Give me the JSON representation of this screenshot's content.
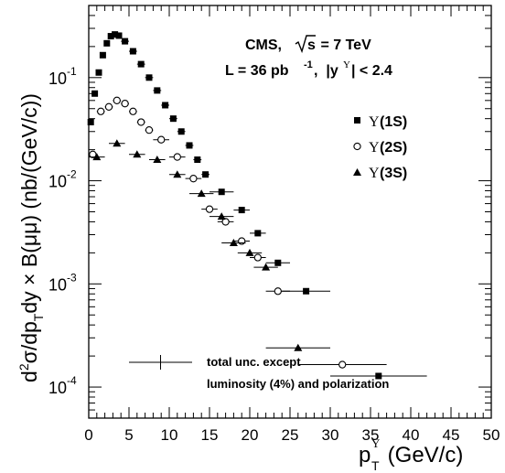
{
  "chart_data": {
    "type": "scatter",
    "xlabel": {
      "base": "p",
      "sub": "T",
      "sup": "Υ",
      "unit": " (GeV/c)"
    },
    "ylabel": "d²σ/dp_T dy × B(μμ) (nb/(GeV/c))",
    "ylabel_parts": {
      "p1": "d",
      "p2": "σ/dp",
      "p3": "dy × B(μμ) (nb/(GeV/c))",
      "sup": "2",
      "sub": "T"
    },
    "xlim": [
      0,
      50
    ],
    "ylim": [
      5e-05,
      0.5
    ],
    "yscale": "log",
    "x_ticks": [
      "0",
      "5",
      "10",
      "15",
      "20",
      "25",
      "30",
      "35",
      "40",
      "45",
      "50"
    ],
    "y_ticks": [
      {
        "base": "10",
        "exp": "-4"
      },
      {
        "base": "10",
        "exp": "-3"
      },
      {
        "base": "10",
        "exp": "-2"
      },
      {
        "base": "10",
        "exp": "-1"
      }
    ],
    "annotations": {
      "experiment": "CMS,",
      "energy_prefix": "s",
      "energy_value": " = 7 TeV",
      "lumi_prefix": "L = 36 pb",
      "lumi_exp": "-1",
      "rapidity": ",  |y",
      "rapidity_sup": "Υ",
      "rapidity_cut": "| < 2.4",
      "unc_line1": "total unc. except",
      "unc_line2": "luminosity (4%) and polarization"
    },
    "legend_position": "right",
    "series": [
      {
        "name": "Υ(1S)",
        "label_greek": "Υ",
        "label_state": "(1S)",
        "marker": "square-filled",
        "points": [
          {
            "x": 0.25,
            "y": 0.037,
            "xerr": 0.25
          },
          {
            "x": 0.75,
            "y": 0.07,
            "xerr": 0.25
          },
          {
            "x": 1.25,
            "y": 0.112,
            "xerr": 0.25
          },
          {
            "x": 1.75,
            "y": 0.165,
            "xerr": 0.25
          },
          {
            "x": 2.25,
            "y": 0.215,
            "xerr": 0.25
          },
          {
            "x": 2.75,
            "y": 0.252,
            "xerr": 0.25
          },
          {
            "x": 3.25,
            "y": 0.262,
            "xerr": 0.25
          },
          {
            "x": 3.75,
            "y": 0.255,
            "xerr": 0.25
          },
          {
            "x": 4.5,
            "y": 0.225,
            "xerr": 0.5
          },
          {
            "x": 5.5,
            "y": 0.18,
            "xerr": 0.5
          },
          {
            "x": 6.5,
            "y": 0.135,
            "xerr": 0.5
          },
          {
            "x": 7.5,
            "y": 0.1,
            "xerr": 0.5
          },
          {
            "x": 8.5,
            "y": 0.075,
            "xerr": 0.5
          },
          {
            "x": 9.5,
            "y": 0.054,
            "xerr": 0.5
          },
          {
            "x": 10.5,
            "y": 0.04,
            "xerr": 0.5
          },
          {
            "x": 11.5,
            "y": 0.03,
            "xerr": 0.5
          },
          {
            "x": 12.5,
            "y": 0.022,
            "xerr": 0.5
          },
          {
            "x": 13.5,
            "y": 0.016,
            "xerr": 0.5
          },
          {
            "x": 14.5,
            "y": 0.0115,
            "xerr": 0.5
          },
          {
            "x": 16.5,
            "y": 0.0078,
            "xerr": 1.5
          },
          {
            "x": 19.0,
            "y": 0.0052,
            "xerr": 1.0
          },
          {
            "x": 21.0,
            "y": 0.0031,
            "xerr": 1.0
          },
          {
            "x": 23.5,
            "y": 0.0016,
            "xerr": 1.5
          },
          {
            "x": 27.0,
            "y": 0.00085,
            "xerr": 3.0
          },
          {
            "x": 36.0,
            "y": 0.000128,
            "xerr": 6.0
          }
        ]
      },
      {
        "name": "Υ(2S)",
        "label_greek": "Υ",
        "label_state": "(2S)",
        "marker": "circle-open",
        "points": [
          {
            "x": 0.5,
            "y": 0.018,
            "xerr": 0.5
          },
          {
            "x": 1.5,
            "y": 0.047,
            "xerr": 0.5
          },
          {
            "x": 2.5,
            "y": 0.052,
            "xerr": 0.5
          },
          {
            "x": 3.5,
            "y": 0.06,
            "xerr": 0.5
          },
          {
            "x": 4.5,
            "y": 0.056,
            "xerr": 0.5
          },
          {
            "x": 5.5,
            "y": 0.047,
            "xerr": 0.5
          },
          {
            "x": 6.5,
            "y": 0.037,
            "xerr": 0.5
          },
          {
            "x": 7.5,
            "y": 0.031,
            "xerr": 0.5
          },
          {
            "x": 9.0,
            "y": 0.025,
            "xerr": 1.0
          },
          {
            "x": 11.0,
            "y": 0.017,
            "xerr": 1.0
          },
          {
            "x": 13.0,
            "y": 0.0105,
            "xerr": 1.0
          },
          {
            "x": 15.0,
            "y": 0.0053,
            "xerr": 1.0
          },
          {
            "x": 17.0,
            "y": 0.004,
            "xerr": 1.0
          },
          {
            "x": 19.0,
            "y": 0.0026,
            "xerr": 1.0
          },
          {
            "x": 21.0,
            "y": 0.0018,
            "xerr": 1.0
          },
          {
            "x": 23.5,
            "y": 0.00085,
            "xerr": 1.5
          },
          {
            "x": 31.5,
            "y": 0.000165,
            "xerr": 5.5
          }
        ]
      },
      {
        "name": "Υ(3S)",
        "label_greek": "Υ",
        "label_state": "(3S)",
        "marker": "triangle-filled",
        "points": [
          {
            "x": 1.0,
            "y": 0.017,
            "xerr": 1.0
          },
          {
            "x": 3.5,
            "y": 0.023,
            "xerr": 1.0
          },
          {
            "x": 6.0,
            "y": 0.018,
            "xerr": 1.0
          },
          {
            "x": 8.5,
            "y": 0.016,
            "xerr": 1.0
          },
          {
            "x": 11.0,
            "y": 0.0115,
            "xerr": 1.0
          },
          {
            "x": 14.0,
            "y": 0.0075,
            "xerr": 1.5
          },
          {
            "x": 16.5,
            "y": 0.0045,
            "xerr": 1.5
          },
          {
            "x": 18.0,
            "y": 0.0025,
            "xerr": 1.5
          },
          {
            "x": 20.0,
            "y": 0.002,
            "xerr": 1.5
          },
          {
            "x": 22.0,
            "y": 0.00145,
            "xerr": 1.5
          },
          {
            "x": 26.0,
            "y": 0.00024,
            "xerr": 4.0
          }
        ]
      }
    ]
  }
}
